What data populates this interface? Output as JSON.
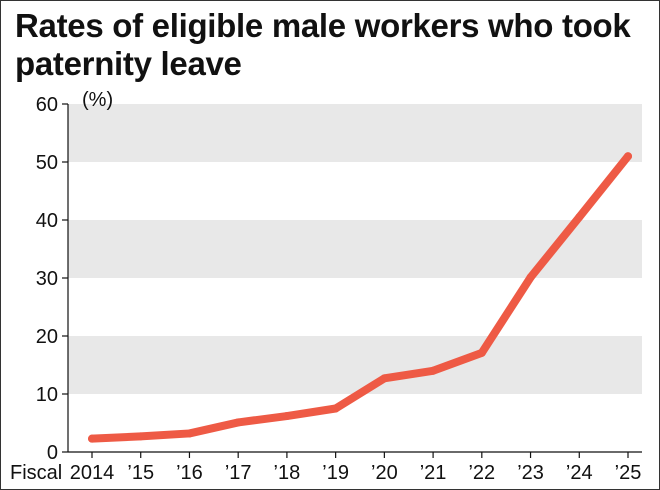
{
  "chart_data": {
    "type": "line",
    "title": "Rates of eligible male workers who took paternity leave",
    "unit_label": "(%)",
    "x_prefix": "Fiscal",
    "x": [
      "2014",
      "’15",
      "’16",
      "’17",
      "’18",
      "’19",
      "’20",
      "’21",
      "’22",
      "’23",
      "’24",
      "’25"
    ],
    "series": [
      {
        "values": [
          2.3,
          2.7,
          3.2,
          5.1,
          6.2,
          7.5,
          12.7,
          14.0,
          17.1,
          30.1,
          40.5,
          51.0
        ]
      }
    ],
    "ylim": [
      0,
      60
    ],
    "yticks": [
      "0",
      "10",
      "20",
      "30",
      "40",
      "50",
      "60"
    ],
    "grid": "alternating horizontal bands",
    "colors": {
      "line": "#ee5a45",
      "band": "#e8e8e8",
      "axis": "#111111"
    }
  }
}
